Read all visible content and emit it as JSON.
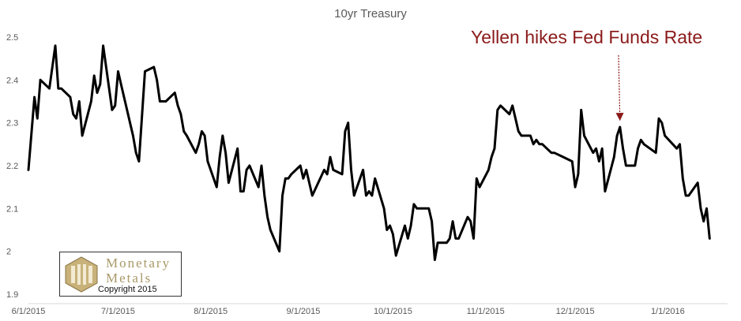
{
  "chart_data": {
    "type": "line",
    "title": "10yr Treasury",
    "xlabel": "",
    "ylabel": "",
    "x_range": [
      "2015-06-01",
      "2016-01-21"
    ],
    "ylim": [
      1.9,
      2.5
    ],
    "y_ticks": [
      1.9,
      2,
      2.1,
      2.2,
      2.3,
      2.4,
      2.5
    ],
    "y_tick_labels": [
      "1.9",
      "2",
      "2.1",
      "2.2",
      "2.3",
      "2.4",
      "2.5"
    ],
    "x_ticks": [
      "2015-06-01",
      "2015-07-01",
      "2015-08-01",
      "2015-09-01",
      "2015-10-01",
      "2015-11-01",
      "2015-12-01",
      "2016-01-01"
    ],
    "x_tick_labels": [
      "6/1/2015",
      "7/1/2015",
      "8/1/2015",
      "9/1/2015",
      "10/1/2015",
      "11/1/2015",
      "12/1/2015",
      "1/1/2016"
    ],
    "grid": "none",
    "line_color": "#000000",
    "series": [
      {
        "points": [
          [
            "2015-06-01",
            2.19
          ],
          [
            "2015-06-03",
            2.36
          ],
          [
            "2015-06-04",
            2.31
          ],
          [
            "2015-06-05",
            2.4
          ],
          [
            "2015-06-08",
            2.38
          ],
          [
            "2015-06-10",
            2.48
          ],
          [
            "2015-06-11",
            2.38
          ],
          [
            "2015-06-12",
            2.38
          ],
          [
            "2015-06-15",
            2.36
          ],
          [
            "2015-06-16",
            2.32
          ],
          [
            "2015-06-17",
            2.31
          ],
          [
            "2015-06-18",
            2.35
          ],
          [
            "2015-06-19",
            2.27
          ],
          [
            "2015-06-22",
            2.35
          ],
          [
            "2015-06-23",
            2.41
          ],
          [
            "2015-06-24",
            2.37
          ],
          [
            "2015-06-25",
            2.39
          ],
          [
            "2015-06-26",
            2.48
          ],
          [
            "2015-06-29",
            2.33
          ],
          [
            "2015-06-30",
            2.34
          ],
          [
            "2015-07-01",
            2.42
          ],
          [
            "2015-07-02",
            2.39
          ],
          [
            "2015-07-06",
            2.27
          ],
          [
            "2015-07-07",
            2.23
          ],
          [
            "2015-07-08",
            2.21
          ],
          [
            "2015-07-10",
            2.42
          ],
          [
            "2015-07-13",
            2.43
          ],
          [
            "2015-07-14",
            2.4
          ],
          [
            "2015-07-15",
            2.35
          ],
          [
            "2015-07-16",
            2.35
          ],
          [
            "2015-07-17",
            2.35
          ],
          [
            "2015-07-20",
            2.37
          ],
          [
            "2015-07-21",
            2.34
          ],
          [
            "2015-07-22",
            2.32
          ],
          [
            "2015-07-23",
            2.28
          ],
          [
            "2015-07-24",
            2.27
          ],
          [
            "2015-07-27",
            2.23
          ],
          [
            "2015-07-28",
            2.25
          ],
          [
            "2015-07-29",
            2.28
          ],
          [
            "2015-07-30",
            2.27
          ],
          [
            "2015-07-31",
            2.21
          ],
          [
            "2015-08-03",
            2.15
          ],
          [
            "2015-08-04",
            2.22
          ],
          [
            "2015-08-05",
            2.27
          ],
          [
            "2015-08-06",
            2.23
          ],
          [
            "2015-08-07",
            2.16
          ],
          [
            "2015-08-10",
            2.24
          ],
          [
            "2015-08-11",
            2.14
          ],
          [
            "2015-08-12",
            2.14
          ],
          [
            "2015-08-13",
            2.19
          ],
          [
            "2015-08-14",
            2.2
          ],
          [
            "2015-08-17",
            2.15
          ],
          [
            "2015-08-18",
            2.2
          ],
          [
            "2015-08-19",
            2.13
          ],
          [
            "2015-08-20",
            2.08
          ],
          [
            "2015-08-21",
            2.05
          ],
          [
            "2015-08-24",
            2.0
          ],
          [
            "2015-08-25",
            2.13
          ],
          [
            "2015-08-26",
            2.17
          ],
          [
            "2015-08-27",
            2.17
          ],
          [
            "2015-08-28",
            2.18
          ],
          [
            "2015-08-31",
            2.2
          ],
          [
            "2015-09-01",
            2.17
          ],
          [
            "2015-09-02",
            2.19
          ],
          [
            "2015-09-03",
            2.16
          ],
          [
            "2015-09-04",
            2.13
          ],
          [
            "2015-09-08",
            2.19
          ],
          [
            "2015-09-09",
            2.18
          ],
          [
            "2015-09-10",
            2.22
          ],
          [
            "2015-09-11",
            2.19
          ],
          [
            "2015-09-14",
            2.18
          ],
          [
            "2015-09-15",
            2.28
          ],
          [
            "2015-09-16",
            2.3
          ],
          [
            "2015-09-17",
            2.19
          ],
          [
            "2015-09-18",
            2.13
          ],
          [
            "2015-09-21",
            2.19
          ],
          [
            "2015-09-22",
            2.13
          ],
          [
            "2015-09-23",
            2.14
          ],
          [
            "2015-09-24",
            2.13
          ],
          [
            "2015-09-25",
            2.17
          ],
          [
            "2015-09-28",
            2.1
          ],
          [
            "2015-09-29",
            2.05
          ],
          [
            "2015-09-30",
            2.06
          ],
          [
            "2015-10-01",
            2.04
          ],
          [
            "2015-10-02",
            1.99
          ],
          [
            "2015-10-05",
            2.06
          ],
          [
            "2015-10-06",
            2.03
          ],
          [
            "2015-10-07",
            2.06
          ],
          [
            "2015-10-08",
            2.11
          ],
          [
            "2015-10-09",
            2.1
          ],
          [
            "2015-10-13",
            2.1
          ],
          [
            "2015-10-14",
            2.07
          ],
          [
            "2015-10-15",
            1.98
          ],
          [
            "2015-10-16",
            2.02
          ],
          [
            "2015-10-19",
            2.02
          ],
          [
            "2015-10-20",
            2.03
          ],
          [
            "2015-10-21",
            2.07
          ],
          [
            "2015-10-22",
            2.03
          ],
          [
            "2015-10-23",
            2.03
          ],
          [
            "2015-10-26",
            2.08
          ],
          [
            "2015-10-27",
            2.07
          ],
          [
            "2015-10-28",
            2.03
          ],
          [
            "2015-10-29",
            2.17
          ],
          [
            "2015-10-30",
            2.15
          ],
          [
            "2015-11-02",
            2.19
          ],
          [
            "2015-11-03",
            2.22
          ],
          [
            "2015-11-04",
            2.24
          ],
          [
            "2015-11-05",
            2.33
          ],
          [
            "2015-11-06",
            2.34
          ],
          [
            "2015-11-09",
            2.32
          ],
          [
            "2015-11-10",
            2.34
          ],
          [
            "2015-11-12",
            2.28
          ],
          [
            "2015-11-13",
            2.27
          ],
          [
            "2015-11-16",
            2.27
          ],
          [
            "2015-11-17",
            2.25
          ],
          [
            "2015-11-18",
            2.26
          ],
          [
            "2015-11-19",
            2.25
          ],
          [
            "2015-11-20",
            2.25
          ],
          [
            "2015-11-23",
            2.23
          ],
          [
            "2015-11-24",
            2.23
          ],
          [
            "2015-11-27",
            2.22
          ],
          [
            "2015-11-30",
            2.21
          ],
          [
            "2015-12-01",
            2.15
          ],
          [
            "2015-12-02",
            2.18
          ],
          [
            "2015-12-03",
            2.33
          ],
          [
            "2015-12-04",
            2.27
          ],
          [
            "2015-12-07",
            2.23
          ],
          [
            "2015-12-08",
            2.24
          ],
          [
            "2015-12-09",
            2.21
          ],
          [
            "2015-12-10",
            2.24
          ],
          [
            "2015-12-11",
            2.14
          ],
          [
            "2015-12-14",
            2.22
          ],
          [
            "2015-12-15",
            2.27
          ],
          [
            "2015-12-16",
            2.29
          ],
          [
            "2015-12-17",
            2.24
          ],
          [
            "2015-12-18",
            2.2
          ],
          [
            "2015-12-21",
            2.2
          ],
          [
            "2015-12-22",
            2.24
          ],
          [
            "2015-12-23",
            2.26
          ],
          [
            "2015-12-24",
            2.25
          ],
          [
            "2015-12-28",
            2.23
          ],
          [
            "2015-12-29",
            2.31
          ],
          [
            "2015-12-30",
            2.3
          ],
          [
            "2015-12-31",
            2.27
          ],
          [
            "2016-01-04",
            2.24
          ],
          [
            "2016-01-05",
            2.25
          ],
          [
            "2016-01-06",
            2.17
          ],
          [
            "2016-01-07",
            2.13
          ],
          [
            "2016-01-08",
            2.13
          ],
          [
            "2016-01-11",
            2.16
          ],
          [
            "2016-01-12",
            2.1
          ],
          [
            "2016-01-13",
            2.07
          ],
          [
            "2016-01-14",
            2.1
          ],
          [
            "2016-01-15",
            2.03
          ]
        ]
      }
    ],
    "annotation": {
      "text": "Yellen hikes Fed Funds Rate",
      "target": [
        "2015-12-16",
        2.29
      ],
      "color": "#8b1a1a"
    }
  },
  "logo": {
    "name_line1": "Monetary",
    "name_line2": "Metals",
    "copyright": "Copyright 2015",
    "gold_color": "#a89968"
  }
}
